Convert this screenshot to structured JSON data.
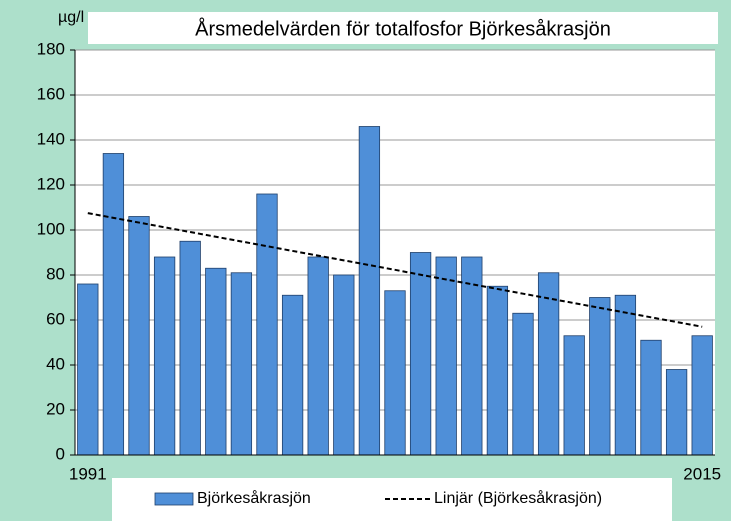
{
  "chart_data": {
    "type": "bar",
    "title": "Årsmedelvärden för totalfosfor Björkesåkrasjön",
    "y_label": "µg/l",
    "categories": [
      "1991",
      null,
      null,
      null,
      null,
      null,
      null,
      null,
      null,
      null,
      null,
      null,
      null,
      null,
      null,
      null,
      null,
      null,
      null,
      null,
      null,
      null,
      null,
      null,
      "2015"
    ],
    "series": [
      {
        "name": "Björkesåkrasjön",
        "color": "#4f8fd8",
        "values": [
          76,
          134,
          106,
          88,
          95,
          83,
          81,
          116,
          71,
          88,
          80,
          146,
          73,
          90,
          88,
          88,
          75,
          63,
          81,
          53,
          70,
          71,
          51,
          38,
          53
        ]
      },
      {
        "name": "Linjär (Björkesåkrasjön)",
        "type": "line",
        "style": "dashed",
        "color": "#000000",
        "values": [
          107.5,
          105.4,
          103.3,
          101.2,
          99.1,
          97.0,
          94.9,
          92.8,
          90.7,
          88.6,
          86.5,
          84.4,
          82.3,
          80.1,
          78.0,
          75.9,
          73.8,
          71.7,
          69.6,
          67.5,
          65.4,
          63.3,
          61.2,
          59.1,
          57.0
        ]
      }
    ],
    "ylim": [
      0,
      180
    ],
    "yticks": [
      0,
      20,
      40,
      60,
      80,
      100,
      120,
      140,
      160,
      180
    ],
    "grid": true,
    "legend": "bottom"
  }
}
